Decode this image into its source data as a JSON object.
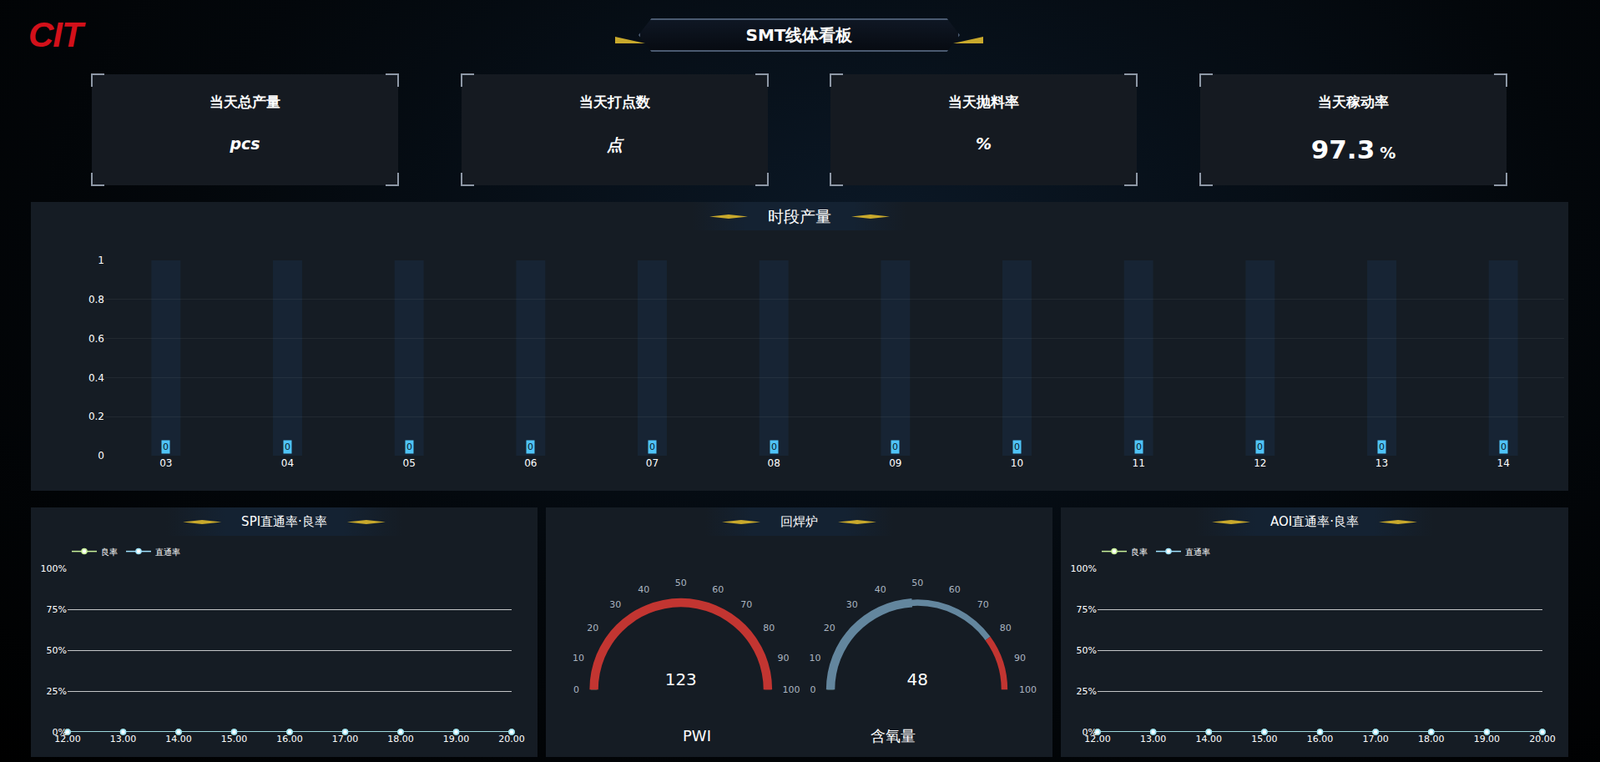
{
  "header": {
    "logo": "CIT",
    "title": "SMT线体看板"
  },
  "kpis": [
    {
      "label": "当天总产量",
      "value": null,
      "unit": "pcs"
    },
    {
      "label": "当天打点数",
      "value": null,
      "unit": "点"
    },
    {
      "label": "当天抛料率",
      "value": null,
      "unit": "%"
    },
    {
      "label": "当天稼动率",
      "value": 97.3,
      "unit": "%"
    }
  ],
  "chart_data": [
    {
      "type": "bar",
      "title": "时段产量",
      "categories": [
        "03",
        "04",
        "05",
        "06",
        "07",
        "08",
        "09",
        "10",
        "11",
        "12",
        "13",
        "14"
      ],
      "values": [
        0,
        0,
        0,
        0,
        0,
        0,
        0,
        0,
        0,
        0,
        0,
        0
      ],
      "color": "#4fc3f7",
      "ylim": [
        0,
        1
      ],
      "yticks": [
        0,
        0.2,
        0.4,
        0.6,
        0.8,
        1
      ],
      "grid": true,
      "data_labels": true
    },
    {
      "type": "line",
      "title": "SPI直通率·良率",
      "categories": [
        "12.00",
        "13.00",
        "14.00",
        "15.00",
        "16.00",
        "17.00",
        "18.00",
        "19.00",
        "20.00"
      ],
      "series": [
        {
          "name": "良率",
          "color": "#c9f29b",
          "marker": "circle",
          "values": [
            0,
            0,
            0,
            0,
            0,
            0,
            0,
            0,
            0
          ]
        },
        {
          "name": "直通率",
          "color": "#9fe3ff",
          "marker": "circle",
          "values": [
            0,
            0,
            0,
            0,
            0,
            0,
            0,
            0,
            0
          ]
        }
      ],
      "ylim": [
        0,
        100
      ],
      "yticks": [
        {
          "value": 0,
          "label": "0%"
        },
        {
          "value": 25,
          "label": "25%"
        },
        {
          "value": 50,
          "label": "50%"
        },
        {
          "value": 75,
          "label": "75%"
        },
        {
          "value": 100,
          "label": "100%"
        }
      ],
      "grid": true,
      "legend": "top-left"
    },
    {
      "type": "gauge",
      "title": "回焊炉",
      "gauges": [
        {
          "name": "PWI",
          "value": 123,
          "color": "#c23531"
        },
        {
          "name": "含氧量",
          "value": 48,
          "color": "#63869e"
        }
      ],
      "ylim": [
        0,
        100
      ],
      "yticks": [
        0,
        10,
        20,
        30,
        40,
        50,
        60,
        70,
        80,
        90,
        100
      ],
      "bands": [
        {
          "from": 0,
          "to": 20,
          "color": "#91c7ae"
        },
        {
          "from": 20,
          "to": 80,
          "color": "#63869e"
        },
        {
          "from": 80,
          "to": 100,
          "color": "#c23531"
        }
      ]
    },
    {
      "type": "line",
      "title": "AOI直通率·良率",
      "categories": [
        "12.00",
        "13.00",
        "14.00",
        "15.00",
        "16.00",
        "17.00",
        "18.00",
        "19.00",
        "20.00"
      ],
      "series": [
        {
          "name": "良率",
          "color": "#c9f29b",
          "marker": "circle",
          "values": [
            0,
            0,
            0,
            0,
            0,
            0,
            0,
            0,
            0
          ]
        },
        {
          "name": "直通率",
          "color": "#9fe3ff",
          "marker": "circle",
          "values": [
            0,
            0,
            0,
            0,
            0,
            0,
            0,
            0,
            0
          ]
        }
      ],
      "ylim": [
        0,
        100
      ],
      "yticks": [
        {
          "value": 0,
          "label": "0%"
        },
        {
          "value": 25,
          "label": "25%"
        },
        {
          "value": 50,
          "label": "50%"
        },
        {
          "value": 75,
          "label": "75%"
        },
        {
          "value": 100,
          "label": "100%"
        }
      ],
      "grid": true,
      "legend": "top-left"
    }
  ]
}
